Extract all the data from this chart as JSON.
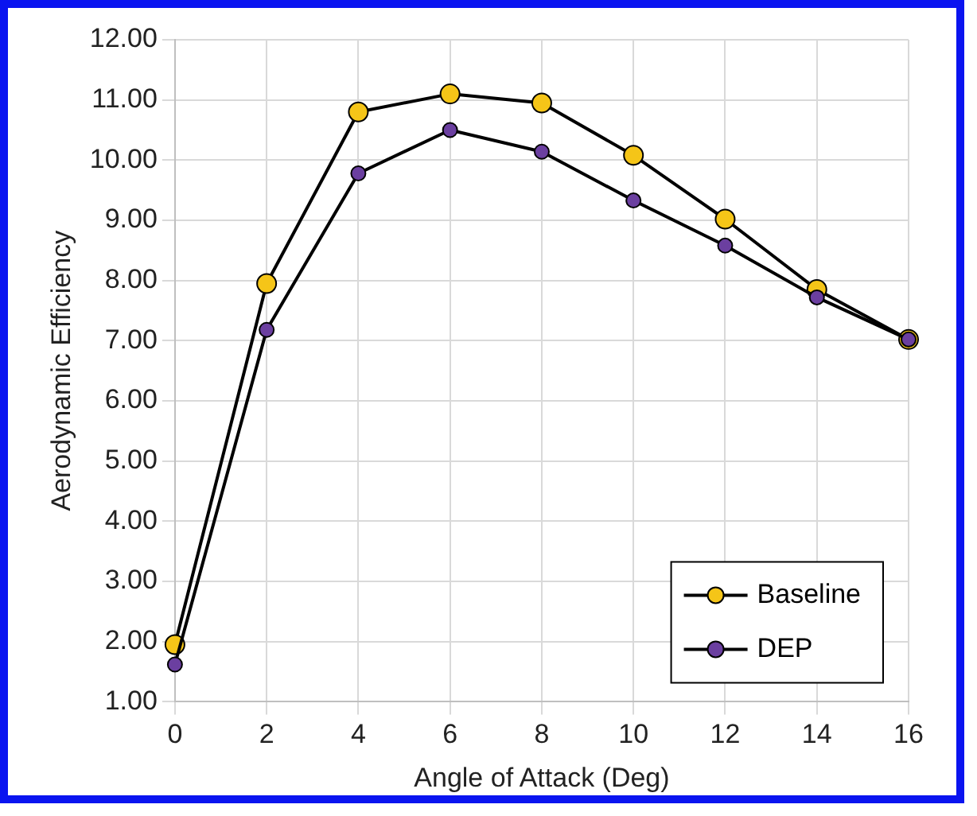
{
  "chart_data": {
    "type": "line",
    "xlabel": "Angle of Attack (Deg)",
    "ylabel": "Aerodynamic Efficiency",
    "x": [
      0,
      2,
      4,
      6,
      8,
      10,
      12,
      14,
      16
    ],
    "series": [
      {
        "name": "Baseline",
        "color": "#f5c518",
        "values": [
          1.95,
          7.95,
          10.8,
          11.1,
          10.95,
          10.08,
          9.02,
          7.85,
          7.02
        ]
      },
      {
        "name": "DEP",
        "color": "#6b3fa0",
        "values": [
          1.62,
          7.18,
          9.78,
          10.5,
          10.14,
          9.33,
          8.58,
          7.72,
          7.02
        ]
      }
    ],
    "xlim": [
      0,
      16
    ],
    "xticks": [
      0,
      2,
      4,
      6,
      8,
      10,
      12,
      14,
      16
    ],
    "ylim": [
      1,
      12
    ],
    "yticks": [
      {
        "value": 1,
        "label": "1.00"
      },
      {
        "value": 2,
        "label": "2.00"
      },
      {
        "value": 3,
        "label": "3.00"
      },
      {
        "value": 4,
        "label": "4.00"
      },
      {
        "value": 5,
        "label": "5.00"
      },
      {
        "value": 6,
        "label": "6.00"
      },
      {
        "value": 7,
        "label": "7.00"
      },
      {
        "value": 8,
        "label": "8.00"
      },
      {
        "value": 9,
        "label": "9.00"
      },
      {
        "value": 10,
        "label": "10.00"
      },
      {
        "value": 11,
        "label": "11.00"
      },
      {
        "value": 12,
        "label": "12.00"
      }
    ],
    "grid": true,
    "legend": "bottom right",
    "marker": "circle",
    "line_style": "solid"
  }
}
